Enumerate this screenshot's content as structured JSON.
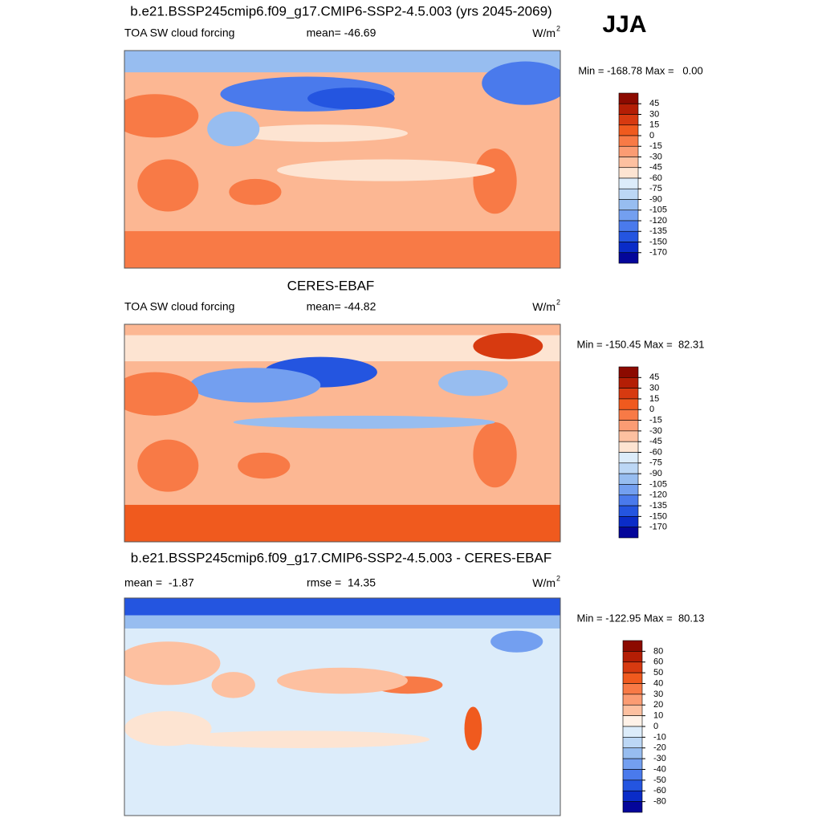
{
  "header": {
    "season": "JJA"
  },
  "panels": [
    {
      "title": "b.e21.BSSP245cmip6.f09_g17.CMIP6-SSP2-4.5.003 (yrs 2045-2069)",
      "left_label": "TOA SW cloud forcing",
      "center_label": "mean= -46.69",
      "units": "W/m",
      "units_exp": "2",
      "minmax": "Min = -168.78 Max =   0.00",
      "colorbar": {
        "ticks": [
          45,
          30,
          15,
          0,
          -15,
          -30,
          -45,
          -60,
          -75,
          -90,
          -105,
          -120,
          -135,
          -150,
          -170
        ],
        "colors": [
          "#8c0a00",
          "#b41e05",
          "#d73a10",
          "#f05a1e",
          "#f87a46",
          "#fb9c73",
          "#fdc0a0",
          "#fde4d2",
          "#dcecfa",
          "#bcd7f5",
          "#97bdf0",
          "#739ff0",
          "#4a7aec",
          "#2455e0",
          "#0a2cc8",
          "#04069a"
        ]
      }
    },
    {
      "title": "CERES-EBAF",
      "left_label": "TOA SW cloud forcing",
      "center_label": "mean= -44.82",
      "units": "W/m",
      "units_exp": "2",
      "minmax": "Min = -150.45 Max =  82.31",
      "colorbar": {
        "ticks": [
          45,
          30,
          15,
          0,
          -15,
          -30,
          -45,
          -60,
          -75,
          -90,
          -105,
          -120,
          -135,
          -150,
          -170
        ],
        "colors": [
          "#8c0a00",
          "#b41e05",
          "#d73a10",
          "#f05a1e",
          "#f87a46",
          "#fb9c73",
          "#fdc0a0",
          "#fde4d2",
          "#dcecfa",
          "#bcd7f5",
          "#97bdf0",
          "#739ff0",
          "#4a7aec",
          "#2455e0",
          "#0a2cc8",
          "#04069a"
        ]
      }
    },
    {
      "title": "b.e21.BSSP245cmip6.f09_g17.CMIP6-SSP2-4.5.003 - CERES-EBAF",
      "left_label": "mean =  -1.87",
      "center_label": "rmse =  14.35",
      "units": "W/m",
      "units_exp": "2",
      "minmax": "Min = -122.95 Max =  80.13",
      "colorbar": {
        "ticks": [
          80,
          60,
          50,
          40,
          30,
          20,
          10,
          0,
          -10,
          -20,
          -30,
          -40,
          -50,
          -60,
          -80
        ],
        "colors": [
          "#8c0a00",
          "#b41e05",
          "#d73a10",
          "#f05a1e",
          "#f87a46",
          "#fb9c73",
          "#fdc0a0",
          "#fff2e8",
          "#dcecfa",
          "#bcd7f5",
          "#97bdf0",
          "#739ff0",
          "#4a7aec",
          "#2455e0",
          "#0a2cc8",
          "#04069a"
        ]
      }
    }
  ]
}
